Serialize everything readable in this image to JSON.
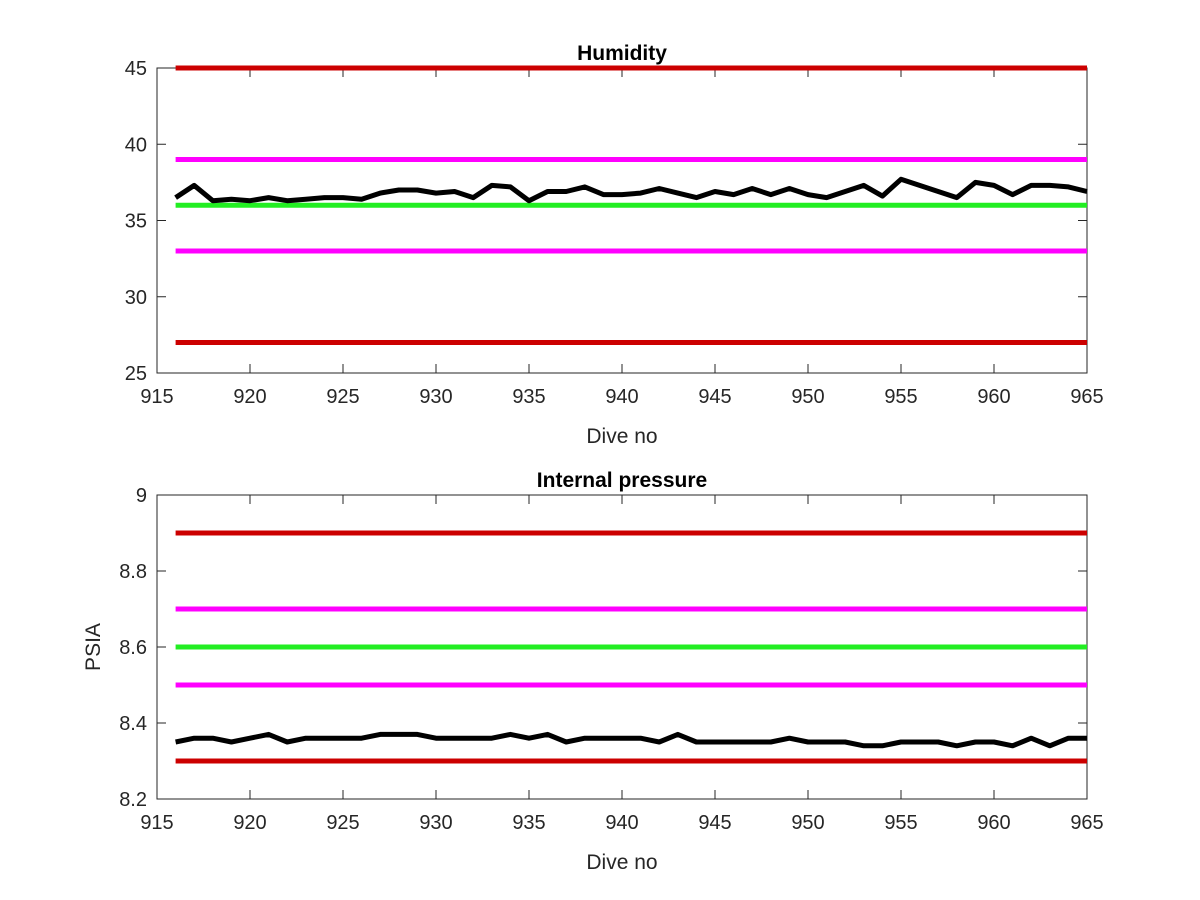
{
  "colors": {
    "red_limit": "#cc0000",
    "magenta_limit": "#ff00ff",
    "green_target": "#22ee22",
    "data_line": "#000000",
    "axes": "#262626"
  },
  "chart_data": [
    {
      "type": "line",
      "title": "Humidity",
      "xlabel": "Dive no",
      "ylabel": "",
      "xlim": [
        915,
        965
      ],
      "ylim": [
        25,
        45
      ],
      "xticks": [
        915,
        920,
        925,
        930,
        935,
        940,
        945,
        950,
        955,
        960,
        965
      ],
      "yticks": [
        25,
        30,
        35,
        40,
        45
      ],
      "grid": false,
      "reference_lines": [
        {
          "y": 45,
          "color": "#cc0000"
        },
        {
          "y": 39,
          "color": "#ff00ff"
        },
        {
          "y": 36,
          "color": "#22ee22"
        },
        {
          "y": 33,
          "color": "#ff00ff"
        },
        {
          "y": 27,
          "color": "#cc0000"
        }
      ],
      "series": [
        {
          "x": [
            916,
            917,
            918,
            919,
            920,
            921,
            922,
            923,
            924,
            925,
            926,
            927,
            928,
            929,
            930,
            931,
            932,
            933,
            934,
            935,
            936,
            937,
            938,
            939,
            940,
            941,
            942,
            943,
            944,
            945,
            946,
            947,
            948,
            949,
            950,
            951,
            952,
            953,
            954,
            955,
            956,
            957,
            958,
            959,
            960,
            961,
            962,
            963,
            964,
            965
          ],
          "values": [
            36.5,
            37.3,
            36.3,
            36.4,
            36.3,
            36.5,
            36.3,
            36.4,
            36.5,
            36.5,
            36.4,
            36.8,
            37.0,
            37.0,
            36.8,
            36.9,
            36.5,
            37.3,
            37.2,
            36.3,
            36.9,
            36.9,
            37.2,
            36.7,
            36.7,
            36.8,
            37.1,
            36.8,
            36.5,
            36.9,
            36.7,
            37.1,
            36.7,
            37.1,
            36.7,
            36.5,
            36.9,
            37.3,
            36.6,
            37.7,
            37.3,
            36.9,
            36.5,
            37.5,
            37.3,
            36.7,
            37.3,
            37.3,
            37.2,
            36.9
          ]
        }
      ]
    },
    {
      "type": "line",
      "title": "Internal pressure",
      "xlabel": "Dive no",
      "ylabel": "PSIA",
      "xlim": [
        915,
        965
      ],
      "ylim": [
        8.2,
        9
      ],
      "xticks": [
        915,
        920,
        925,
        930,
        935,
        940,
        945,
        950,
        955,
        960,
        965
      ],
      "yticks": [
        8.2,
        8.4,
        8.6,
        8.8,
        9
      ],
      "grid": false,
      "reference_lines": [
        {
          "y": 8.9,
          "color": "#cc0000"
        },
        {
          "y": 8.7,
          "color": "#ff00ff"
        },
        {
          "y": 8.6,
          "color": "#22ee22"
        },
        {
          "y": 8.5,
          "color": "#ff00ff"
        },
        {
          "y": 8.3,
          "color": "#cc0000"
        }
      ],
      "series": [
        {
          "x": [
            916,
            917,
            918,
            919,
            920,
            921,
            922,
            923,
            924,
            925,
            926,
            927,
            928,
            929,
            930,
            931,
            932,
            933,
            934,
            935,
            936,
            937,
            938,
            939,
            940,
            941,
            942,
            943,
            944,
            945,
            946,
            947,
            948,
            949,
            950,
            951,
            952,
            953,
            954,
            955,
            956,
            957,
            958,
            959,
            960,
            961,
            962,
            963,
            964,
            965
          ],
          "values": [
            8.35,
            8.36,
            8.36,
            8.35,
            8.36,
            8.37,
            8.35,
            8.36,
            8.36,
            8.36,
            8.36,
            8.37,
            8.37,
            8.37,
            8.36,
            8.36,
            8.36,
            8.36,
            8.37,
            8.36,
            8.37,
            8.35,
            8.36,
            8.36,
            8.36,
            8.36,
            8.35,
            8.37,
            8.35,
            8.35,
            8.35,
            8.35,
            8.35,
            8.36,
            8.35,
            8.35,
            8.35,
            8.34,
            8.34,
            8.35,
            8.35,
            8.35,
            8.34,
            8.35,
            8.35,
            8.34,
            8.36,
            8.34,
            8.36,
            8.36
          ]
        }
      ]
    }
  ]
}
